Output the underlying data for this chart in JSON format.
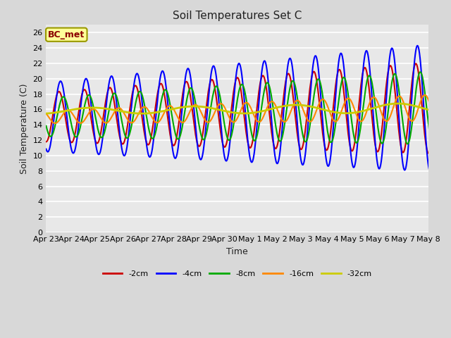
{
  "title": "Soil Temperatures Set C",
  "xlabel": "Time",
  "ylabel": "Soil Temperature (C)",
  "annotation": "BC_met",
  "annotation_color": "#8B0000",
  "annotation_bg": "#FFFF99",
  "ylim": [
    0,
    27
  ],
  "yticks": [
    0,
    2,
    4,
    6,
    8,
    10,
    12,
    14,
    16,
    18,
    20,
    22,
    24,
    26
  ],
  "x_tick_labels": [
    "Apr 23",
    "Apr 24",
    "Apr 25",
    "Apr 26",
    "Apr 27",
    "Apr 28",
    "Apr 29",
    "Apr 30",
    "May 1",
    "May 2",
    "May 3",
    "May 4",
    "May 5",
    "May 6",
    "May 7",
    "May 8"
  ],
  "series": [
    {
      "label": "-2cm",
      "color": "#CC0000",
      "lw": 1.5
    },
    {
      "label": "-4cm",
      "color": "#0000FF",
      "lw": 1.5
    },
    {
      "label": "-8cm",
      "color": "#00AA00",
      "lw": 1.5
    },
    {
      "label": "-16cm",
      "color": "#FF8800",
      "lw": 1.5
    },
    {
      "label": "-32cm",
      "color": "#CCCC00",
      "lw": 2.0
    }
  ],
  "bg_color": "#D8D8D8",
  "plot_bg_color": "#E8E8E8",
  "title_fontsize": 11,
  "axis_fontsize": 9,
  "tick_fontsize": 8
}
